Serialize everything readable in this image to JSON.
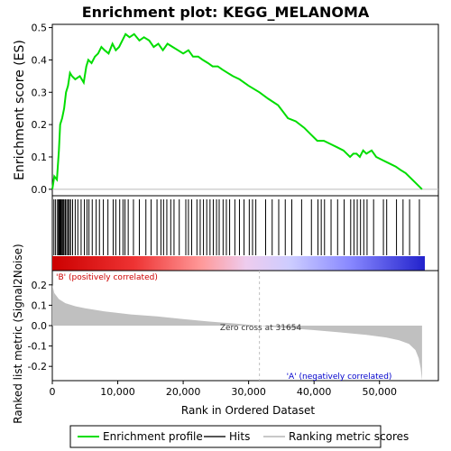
{
  "chart_data": {
    "title": "Enrichment plot: KEGG_MELANOMA",
    "type": "line",
    "es_panel": {
      "ylabel": "Enrichment score (ES)",
      "ylim": [
        -0.02,
        0.51
      ],
      "yticks": [
        "0.0",
        "0.1",
        "0.2",
        "0.3",
        "0.4",
        "0.5"
      ],
      "ytick_values": [
        0.0,
        0.1,
        0.2,
        0.3,
        0.4,
        0.5
      ],
      "series": [
        {
          "name": "Enrichment profile",
          "color": "#00dd00",
          "x": [
            0,
            300,
            700,
            1000,
            1200,
            1500,
            1800,
            2100,
            2400,
            2700,
            3000,
            3500,
            4200,
            4800,
            5200,
            5500,
            6000,
            6500,
            7000,
            7500,
            8000,
            8600,
            9200,
            9700,
            10200,
            10700,
            11200,
            11800,
            12500,
            13300,
            14000,
            14800,
            15500,
            16200,
            16900,
            17600,
            18400,
            19200,
            20000,
            20800,
            21500,
            22300,
            23000,
            23800,
            24500,
            25300,
            26000,
            26800,
            27600,
            28600,
            30000,
            31654,
            33000,
            34500,
            36000,
            37200,
            38500,
            39500,
            40500,
            41500,
            42500,
            43500,
            44500,
            45500,
            46000,
            46500,
            47000,
            47500,
            48000,
            48800,
            49500,
            50500,
            51500,
            52500,
            53200,
            54000,
            55000,
            56500
          ],
          "y": [
            0.0,
            0.04,
            0.03,
            0.12,
            0.2,
            0.22,
            0.25,
            0.3,
            0.32,
            0.36,
            0.35,
            0.34,
            0.35,
            0.33,
            0.38,
            0.4,
            0.39,
            0.41,
            0.42,
            0.44,
            0.43,
            0.42,
            0.45,
            0.43,
            0.44,
            0.46,
            0.48,
            0.47,
            0.48,
            0.46,
            0.47,
            0.46,
            0.44,
            0.45,
            0.43,
            0.45,
            0.44,
            0.43,
            0.42,
            0.43,
            0.41,
            0.41,
            0.4,
            0.39,
            0.38,
            0.38,
            0.37,
            0.36,
            0.35,
            0.34,
            0.32,
            0.3,
            0.28,
            0.26,
            0.22,
            0.21,
            0.19,
            0.17,
            0.15,
            0.15,
            0.14,
            0.13,
            0.12,
            0.1,
            0.11,
            0.11,
            0.1,
            0.12,
            0.11,
            0.12,
            0.1,
            0.09,
            0.08,
            0.07,
            0.06,
            0.05,
            0.03,
            0.0
          ]
        }
      ]
    },
    "hits_panel": {
      "hit_positions": [
        250,
        500,
        800,
        950,
        1050,
        1150,
        1250,
        1350,
        1500,
        1650,
        1800,
        2000,
        2200,
        2400,
        2600,
        2800,
        3100,
        3500,
        3900,
        4400,
        4900,
        5300,
        5600,
        6100,
        6700,
        7200,
        7800,
        8500,
        9300,
        9700,
        10300,
        10800,
        11100,
        11600,
        12400,
        13300,
        14300,
        15100,
        16000,
        16600,
        17000,
        17500,
        18100,
        18600,
        19400,
        20400,
        20800,
        21300,
        22100,
        22600,
        23100,
        23600,
        24100,
        24600,
        25100,
        25500,
        26100,
        26600,
        27100,
        27900,
        28600,
        29300,
        30100,
        30600,
        31100,
        32600,
        33600,
        34600,
        35600,
        36600,
        38100,
        39600,
        40600,
        41100,
        41600,
        42600,
        43600,
        44600,
        45600,
        46100,
        46600,
        47100,
        47600,
        48100,
        49100,
        50600,
        51100,
        52600,
        53600,
        54600,
        56100
      ],
      "gradient_stops": [
        "#cc0000",
        "#ee3333",
        "#ff9999",
        "#eeccee",
        "#ccccff",
        "#8888ff",
        "#2222cc"
      ],
      "red_label": "'B' (positively correlated)",
      "blue_label": "'A' (negatively correlated)",
      "red_label_color": "#cc0000",
      "blue_label_color": "#0000cc"
    },
    "metric_panel": {
      "ylabel": "Ranked list metric (Signal2Noise)",
      "ylim": [
        -0.27,
        0.27
      ],
      "yticks": [
        "0.2",
        "0.1",
        "0.0",
        "-0.1",
        "-0.2"
      ],
      "ytick_values": [
        0.2,
        0.1,
        0.0,
        -0.1,
        -0.2
      ],
      "zero_cross_label": "Zero cross at 31654",
      "zero_cross": 31654,
      "series": [
        {
          "name": "Ranking metric scores",
          "color": "#c0c0c0",
          "x": [
            0,
            300,
            1000,
            2000,
            3500,
            5000,
            8000,
            12000,
            16000,
            20000,
            24000,
            28000,
            31654,
            35000,
            40000,
            44000,
            48000,
            51000,
            53000,
            54500,
            55500,
            56000,
            56300,
            56500
          ],
          "y": [
            0.2,
            0.16,
            0.13,
            0.11,
            0.095,
            0.085,
            0.07,
            0.055,
            0.045,
            0.032,
            0.02,
            0.01,
            0.0,
            -0.01,
            -0.022,
            -0.033,
            -0.045,
            -0.058,
            -0.072,
            -0.09,
            -0.12,
            -0.16,
            -0.21,
            -0.27
          ]
        }
      ]
    },
    "xlabel": "Rank in Ordered Dataset",
    "xlim": [
      0,
      59000
    ],
    "xticks": [
      "0",
      "10,000",
      "20,000",
      "30,000",
      "40,000",
      "50,000"
    ],
    "xtick_values": [
      0,
      10000,
      20000,
      30000,
      40000,
      50000
    ],
    "grid": false,
    "legend_position": "bottom",
    "legend": [
      {
        "label": "Enrichment profile",
        "color": "#00dd00"
      },
      {
        "label": "Hits",
        "color": "#555555"
      },
      {
        "label": "Ranking metric scores",
        "color": "#c8c8c8"
      }
    ]
  }
}
